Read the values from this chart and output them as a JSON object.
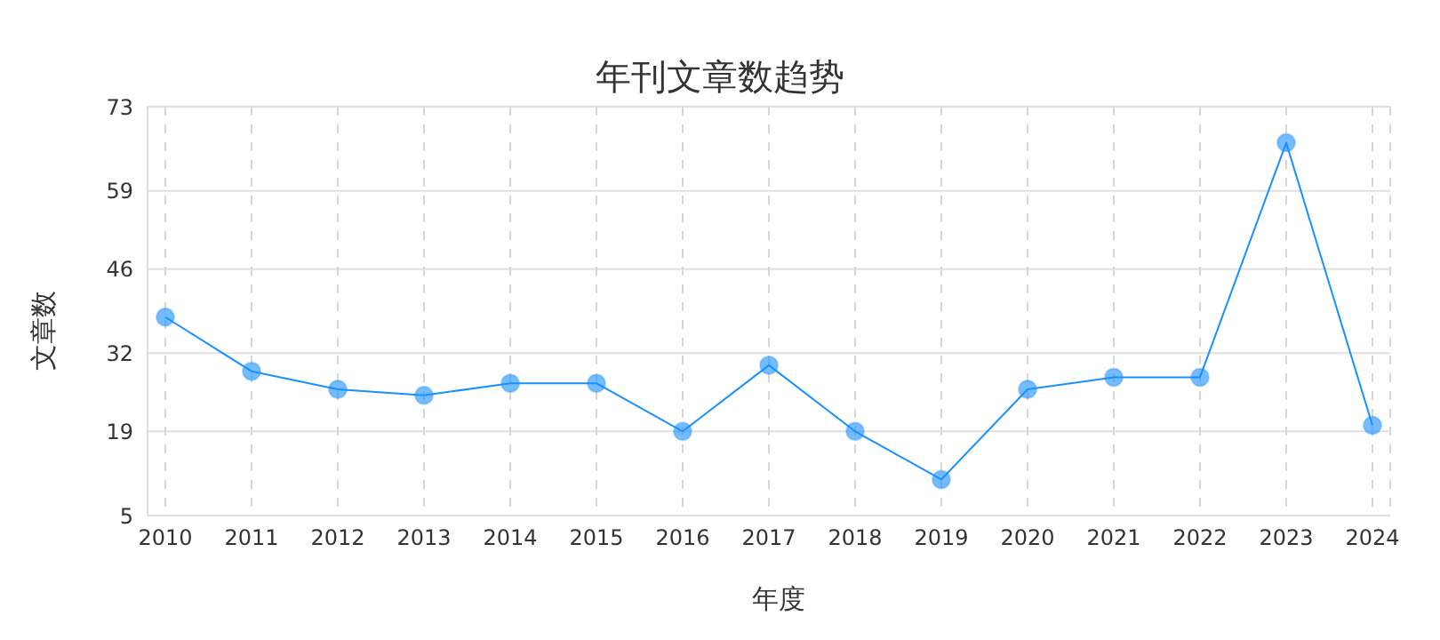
{
  "chart_data": {
    "type": "line",
    "title": "年刊文章数趋势",
    "xlabel": "年度",
    "ylabel": "文章数",
    "categories": [
      "2010",
      "2011",
      "2012",
      "2013",
      "2014",
      "2015",
      "2016",
      "2017",
      "2018",
      "2019",
      "2020",
      "2021",
      "2022",
      "2023",
      "2024"
    ],
    "series": [
      {
        "color": "#1890ff",
        "values": [
          38,
          29,
          26,
          25,
          27,
          27,
          19,
          30,
          19,
          11,
          26,
          28,
          28,
          67,
          20
        ]
      }
    ],
    "ylim": [
      5,
      73
    ],
    "yticks": [
      5,
      19,
      32,
      46,
      59,
      73
    ],
    "grid": true,
    "marker": "circle",
    "line_style": "solid"
  }
}
